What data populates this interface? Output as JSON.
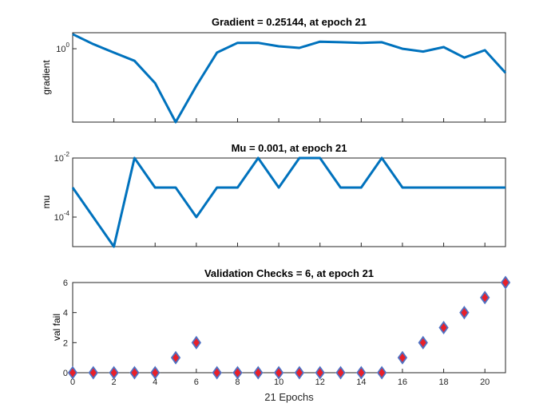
{
  "chart_data": [
    {
      "type": "line",
      "title": "Gradient = 0.25144, at epoch 21",
      "ylabel": "gradient",
      "yscale": "log",
      "ylim": [
        0.015,
        2.5
      ],
      "yticks": [
        {
          "value": 1,
          "base": "10",
          "exp": "0"
        }
      ],
      "xlim": [
        0,
        21
      ],
      "color": "#0072BD",
      "x": [
        0,
        1,
        2,
        3,
        4,
        5,
        6,
        7,
        8,
        9,
        10,
        11,
        12,
        13,
        14,
        15,
        16,
        17,
        18,
        19,
        20,
        21
      ],
      "values": [
        2.3,
        1.3,
        0.8,
        0.5,
        0.14,
        0.015,
        0.12,
        0.8,
        1.4,
        1.4,
        1.15,
        1.05,
        1.5,
        1.45,
        1.4,
        1.45,
        1.0,
        0.85,
        1.1,
        0.6,
        0.92,
        0.25144
      ]
    },
    {
      "type": "line",
      "title": "Mu = 0.001, at epoch 21",
      "ylabel": "mu",
      "yscale": "log",
      "ylim": [
        1e-05,
        0.01
      ],
      "yticks": [
        {
          "value": 0.01,
          "base": "10",
          "exp": "-2"
        },
        {
          "value": 0.0001,
          "base": "10",
          "exp": "-4"
        }
      ],
      "xlim": [
        0,
        21
      ],
      "color": "#0072BD",
      "x": [
        0,
        1,
        2,
        3,
        4,
        5,
        6,
        7,
        8,
        9,
        10,
        11,
        12,
        13,
        14,
        15,
        16,
        17,
        18,
        19,
        20,
        21
      ],
      "values": [
        0.001,
        0.0001,
        1e-05,
        0.01,
        0.001,
        0.001,
        0.0001,
        0.001,
        0.001,
        0.01,
        0.001,
        0.01,
        0.01,
        0.001,
        0.001,
        0.01,
        0.001,
        0.001,
        0.001,
        0.001,
        0.001,
        0.001
      ]
    },
    {
      "type": "scatter",
      "title": "Validation Checks = 6, at epoch 21",
      "ylabel": "val fail",
      "xlabel": "21 Epochs",
      "ylim": [
        0,
        6
      ],
      "yticks": [
        0,
        2,
        4,
        6
      ],
      "xlim": [
        0,
        21
      ],
      "xticks": [
        0,
        2,
        4,
        6,
        8,
        10,
        12,
        14,
        16,
        18,
        20
      ],
      "marker": "diamond",
      "marker_fill": "#E8202A",
      "marker_edge": "#4F72C4",
      "x": [
        0,
        1,
        2,
        3,
        4,
        5,
        6,
        7,
        8,
        9,
        10,
        11,
        12,
        13,
        14,
        15,
        16,
        17,
        18,
        19,
        20,
        21
      ],
      "values": [
        0,
        0,
        0,
        0,
        0,
        1,
        2,
        0,
        0,
        0,
        0,
        0,
        0,
        0,
        0,
        0,
        1,
        2,
        3,
        4,
        5,
        6
      ]
    }
  ]
}
